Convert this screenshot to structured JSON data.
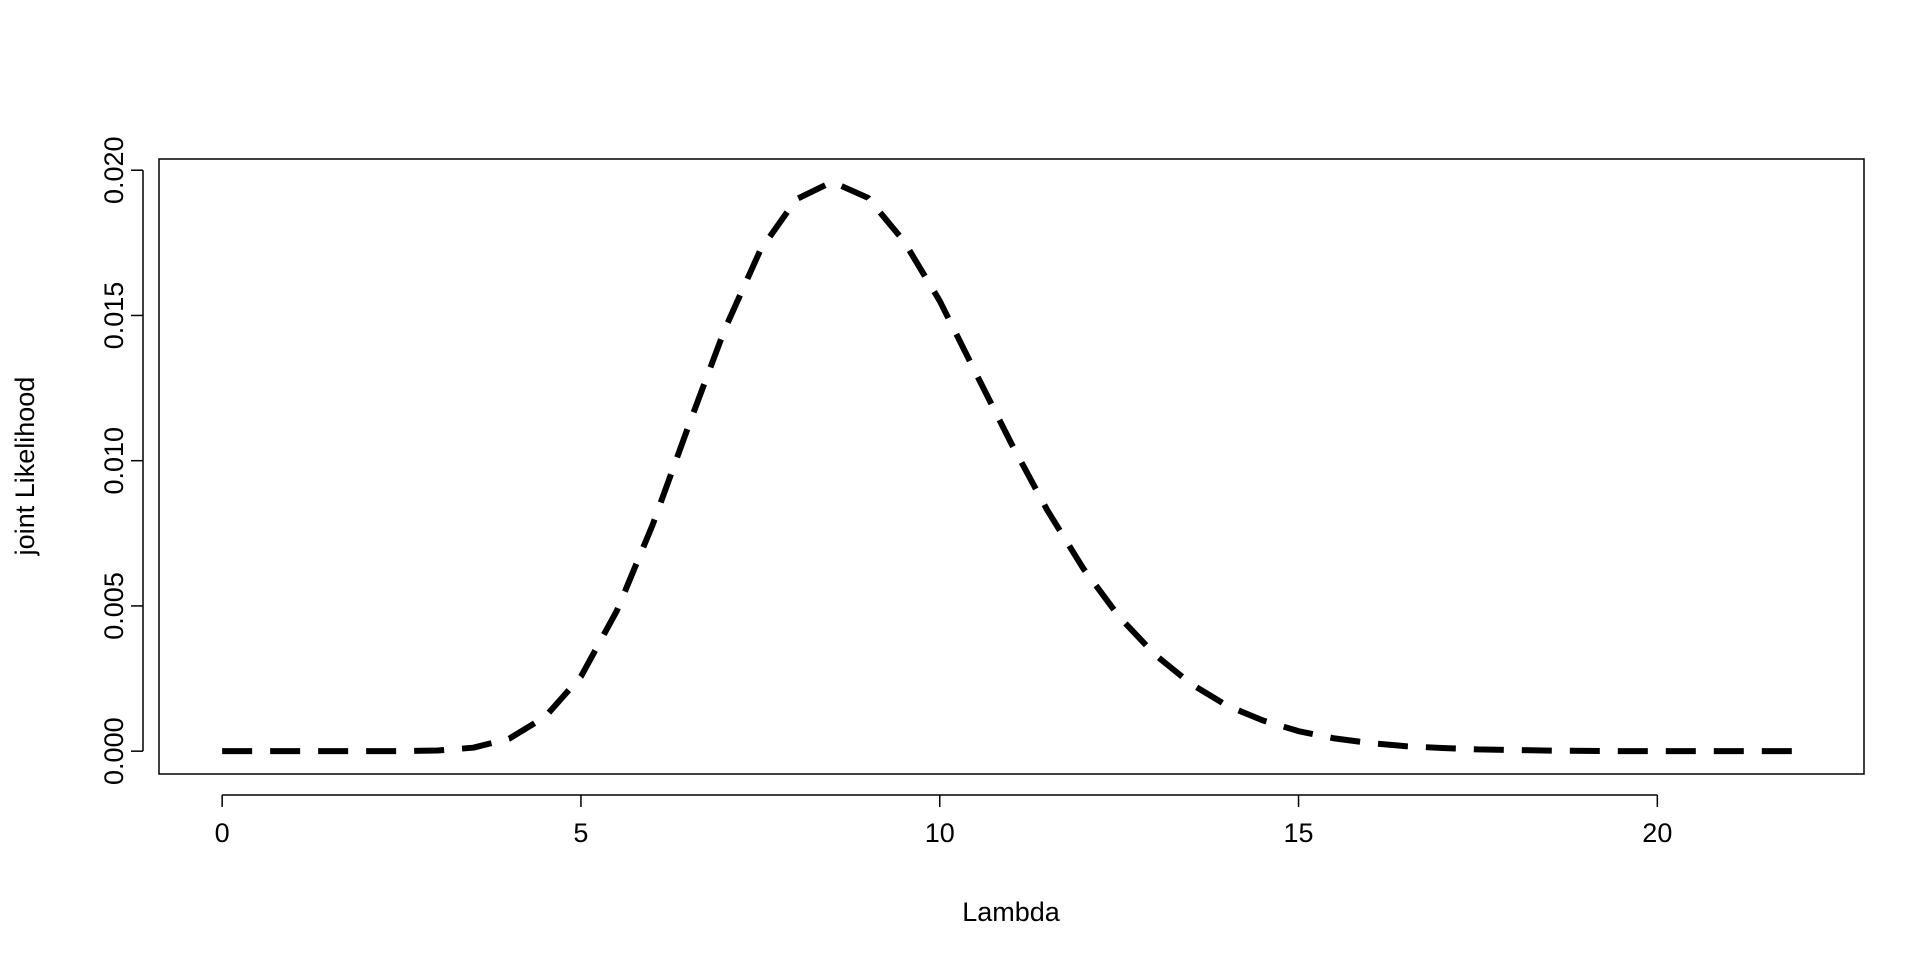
{
  "chart_data": {
    "type": "line",
    "xlabel": "Lambda",
    "ylabel": "joint Likelihood",
    "x": [
      0,
      0.5,
      1,
      1.5,
      2,
      2.5,
      3,
      3.5,
      4,
      4.5,
      5,
      5.5,
      6,
      6.5,
      7,
      7.5,
      8,
      8.5,
      9,
      9.5,
      10,
      10.5,
      11,
      11.5,
      12,
      12.5,
      13,
      13.5,
      14,
      14.5,
      15,
      15.5,
      16,
      16.5,
      17,
      17.5,
      18,
      18.5,
      19,
      19.5,
      20,
      20.5,
      21,
      21.5,
      22
    ],
    "series": [
      {
        "color": "#000000",
        "line_style": "dashed",
        "values": [
          0,
          0,
          0,
          0,
          0,
          3e-06,
          2.4e-05,
          0.00012,
          0.00043,
          0.00118,
          0.00257,
          0.00483,
          0.0078,
          0.0112,
          0.0145,
          0.01725,
          0.019,
          0.0196,
          0.01905,
          0.01756,
          0.0155,
          0.01303,
          0.01058,
          0.00829,
          0.00629,
          0.00463,
          0.00332,
          0.00232,
          0.00157,
          0.00106,
          0.00069,
          0.00044,
          0.00028,
          0.00017,
          0.00011,
          6e-05,
          4e-05,
          2e-05,
          1e-05,
          0,
          0,
          0,
          0,
          0,
          0
        ]
      }
    ],
    "xlim": [
      -0.88,
      22.88
    ],
    "xticks": [
      0,
      5,
      10,
      15,
      20
    ],
    "ylim": [
      -0.000786,
      0.020386
    ],
    "yticks": [
      {
        "value": 0,
        "label": "0.000"
      },
      {
        "value": 0.005,
        "label": "0.005"
      },
      {
        "value": 0.01,
        "label": "0.010"
      },
      {
        "value": 0.015,
        "label": "0.015"
      },
      {
        "value": 0.02,
        "label": "0.020"
      }
    ],
    "grid": false
  }
}
